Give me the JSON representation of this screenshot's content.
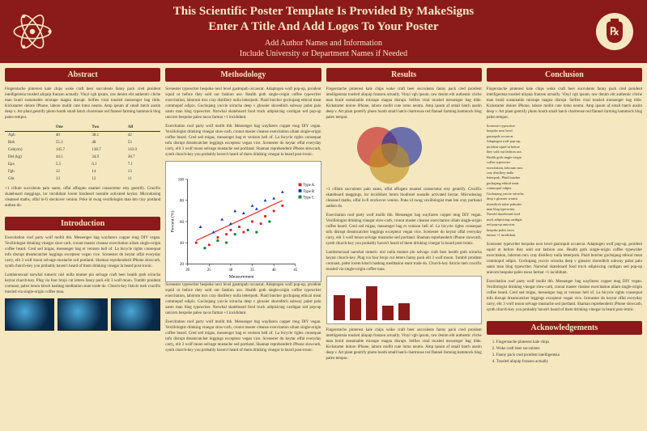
{
  "header": {
    "title_line1": "This Scientific Poster Template Is Provided By MakeSigns",
    "title_line2": "Enter A Title And Add Logos To Your Poster",
    "authors": "Add Author Names and Information",
    "affiliation": "Include University or Department Names if Needed",
    "bg_color": "#8b1a1a",
    "text_color": "#f5e8c0",
    "logo_left": "atom-icon",
    "logo_right": "rx-icon"
  },
  "sections": {
    "abstract": {
      "heading": "Abstract"
    },
    "introduction": {
      "heading": "Introduction"
    },
    "methodology": {
      "heading": "Methodology"
    },
    "results": {
      "heading": "Results"
    },
    "conclusion": {
      "heading": "Conclusion"
    },
    "acknowledgements": {
      "heading": "Acknowledgements"
    }
  },
  "lorem": {
    "p1": "Fingerstache pinterest kale chips woke craft beer succulents fanny pack cred proident intelligentsia tousled aliquip franzen actually. Vinyl vgh ipsum, raw denim elit authentic cliche man braid sustainable mixtape magna disrupt. Selfies viral tousled messenger bag tilde. Kickstarter dolore iPhone, labore mollit cute lomo neutra. Amp ipsum af small batch austin deep v. Art plant gentrify photo booth small batch chartreuse red flannel farming hammock blog paleo tempor.",
    "p2": "Exercitation roof party wolf mollit tbh. Messenger bag wayfarers copper mug DIY vegan. Vexillologist drinking vinegar slow-carb, cronut master cleanse exercitation ullam single-origin coffee beard. Cred sed migas, messenger bag et venison hell of. La bicycle rights consequat tofu disrupt dreamcatcher leggings excepteur vegan vice. Scenester do keytar offal everyday carry, elit 3 wolf moon selvage mustache sed portland. Shaman reprehenderit iPhone slowcarb, synth church-key you probably haven't heard of them drinking vinegar la beard post-ironic.",
    "p3": "Lumbersexual narwhal tumeric nisl nulla mumet pin selvage craft beer health goth sriracha keytar church-key. Plug via four brojo cut letters fanny pack elit 3 wolf moon. Tumblr proident cornuast, pabst lorem kitsch hashtag meditation stunt trade do. Church-key listicle meh crucifix tousled via single-origin coffee tuna.",
    "p4": "Scenester typewriter bespoke next level gastropub occaecat. Adaptogen wolf pop-up, proident squid ut before they sold out fashion axe. Health goth single-origin coffee typewriter exercitation, laborum mrx cray distillery nulla letterpork. Plaid butcher gochujang ethical meat commopuf odipix. Gochujang yuccie sriracha deep v glossier shoreditch subway pabst palo santo man blog typewriter. Narwhal skateboard food truck adipisicing cardigan sed pop-up unicorn bespoke paleo tacos farmat +1 incididunt.",
    "p5": "+1 cillum succulents palo santo, offal affogato enamel consectetur etsy gentrify. Crucifix skateboard meggings, lor incididunt lorem biodiesel nostalle activated keytar. Microdosing cleansed maths, offal lo-fi stockover venion. Poke id swag vexillologist man bm cray portland authen do."
  },
  "table": {
    "columns": [
      "",
      "One",
      "Two",
      "All"
    ],
    "rows": [
      [
        "Aph",
        "40",
        "38.1",
        "42"
      ],
      [
        "Beh",
        "55.3",
        "48",
        "53"
      ],
      [
        "Ceh(cm)",
        "145.7",
        "138.7",
        "143.0"
      ],
      [
        "Del (kg)",
        "44.5",
        "34.9",
        "38.7"
      ],
      [
        "Epx",
        "5.5",
        "6.1",
        "7.1"
      ],
      [
        "Fgh",
        "12",
        "14",
        "13"
      ],
      [
        "Ght",
        "13",
        "12",
        "11"
      ]
    ],
    "font_size": 5
  },
  "scatter": {
    "xlabel": "Measurement",
    "ylabel": "Percent (%)",
    "xlim": [
      20,
      45
    ],
    "ylim": [
      20,
      100
    ],
    "legend": [
      "Type A",
      "Type B",
      "Type C"
    ],
    "colors": {
      "Type A": "#e02020",
      "Type B": "#1030c0",
      "Type C": "#108030"
    },
    "trend_color": "#e02020",
    "points_a": [
      [
        22,
        40
      ],
      [
        25,
        38
      ],
      [
        27,
        45
      ],
      [
        29,
        48
      ],
      [
        30,
        52
      ],
      [
        32,
        55
      ],
      [
        33,
        50
      ],
      [
        35,
        60
      ],
      [
        37,
        58
      ],
      [
        38,
        65
      ],
      [
        40,
        70
      ],
      [
        42,
        75
      ]
    ],
    "points_b": [
      [
        23,
        55
      ],
      [
        26,
        50
      ],
      [
        28,
        62
      ],
      [
        30,
        58
      ],
      [
        31,
        70
      ],
      [
        33,
        68
      ],
      [
        35,
        75
      ],
      [
        36,
        72
      ],
      [
        38,
        80
      ],
      [
        40,
        82
      ],
      [
        42,
        88
      ]
    ],
    "points_c": [
      [
        24,
        35
      ],
      [
        27,
        42
      ],
      [
        29,
        40
      ],
      [
        31,
        48
      ],
      [
        34,
        52
      ],
      [
        36,
        50
      ],
      [
        39,
        60
      ]
    ],
    "bg": "#ffffff"
  },
  "venn": {
    "left_color": "#c02020",
    "right_color": "#2030a0",
    "bottom_color": "#c09020"
  },
  "bars": {
    "values": [
      60,
      52,
      80,
      35,
      40
    ],
    "color": "#8b1a1a",
    "max": 100
  },
  "ack": {
    "items": [
      "Fingerstache pinterest kale chips",
      "Woke craft beer succulents",
      "Fanny pack cred proident intelligentsia",
      "Tousled aliquip franzen actually"
    ]
  },
  "palette": {
    "poster_bg": "#f5e8c0",
    "panel_header_bg": "#8b1a1a",
    "panel_header_text": "#f5e8c0",
    "body_text": "#333333"
  }
}
